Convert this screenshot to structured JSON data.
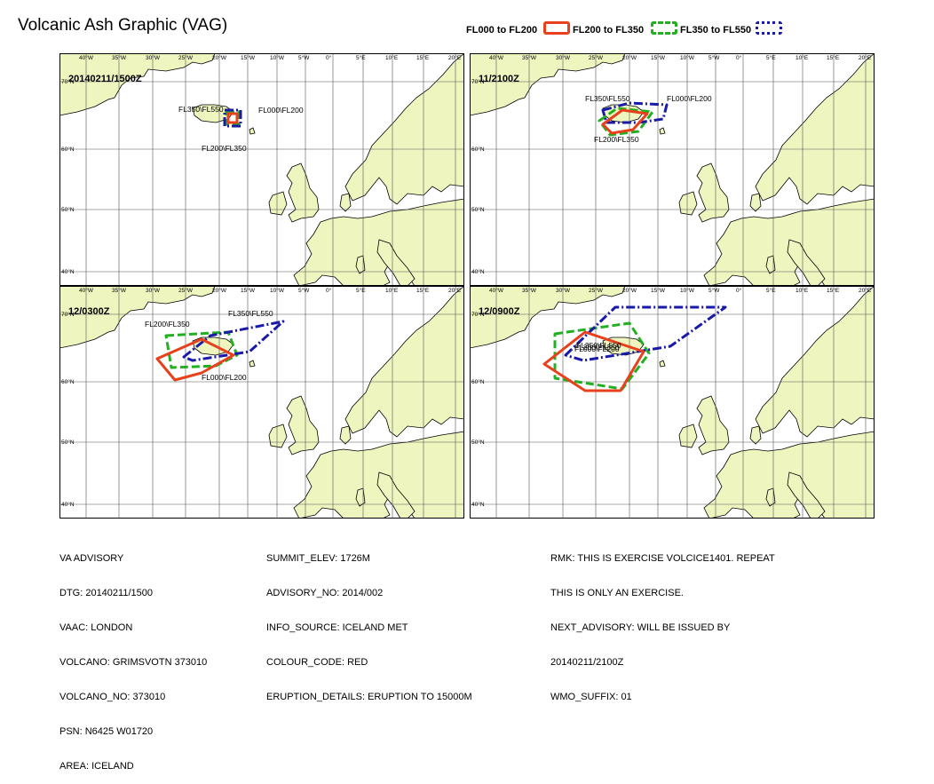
{
  "title": "Volcanic Ash Graphic (VAG)",
  "colors": {
    "fl000_fl200": "#e8401c",
    "fl200_fl350": "#22b022",
    "fl350_fl550": "#1a1aaa",
    "land": "#eef5bf",
    "sea": "#ffffff",
    "grid": "#555555"
  },
  "legend": [
    {
      "label": "FL000 to FL200",
      "color_key": "fl000_fl200",
      "style": "solid"
    },
    {
      "label": "FL200 to FL350",
      "color_key": "fl200_fl350",
      "style": "dashed"
    },
    {
      "label": "FL350 to FL550",
      "color_key": "fl350_fl550",
      "style": "dashdot"
    }
  ],
  "lon_ticks": [
    "40°W",
    "35°W",
    "30°W",
    "25°W",
    "20°W",
    "15°W",
    "10°W",
    "5°W",
    "0°",
    "5°E",
    "10°E",
    "15°E",
    "20°E"
  ],
  "lat_ticks": [
    "70°N",
    "60°N",
    "50°N",
    "40°N"
  ],
  "panels": [
    {
      "time": "20140211/1500Z",
      "labels": {
        "fl000": "FL000\\FL200",
        "fl200": "FL200\\FL350",
        "fl350": "FL350\\FL550"
      }
    },
    {
      "time": "11/2100Z",
      "labels": {
        "fl000": "FL000\\FL200",
        "fl200": "FL200\\FL350",
        "fl350": "FL350\\FL550"
      }
    },
    {
      "time": "12/0300Z",
      "labels": {
        "fl000": "FL000\\FL200",
        "fl200": "FL200\\FL350",
        "fl350": "FL350\\FL550"
      }
    },
    {
      "time": "12/0900Z",
      "labels": {
        "fl000": "FL000\\FL200",
        "fl200": "FL200\\FL350",
        "fl350": "FL350\\FL550"
      }
    }
  ],
  "info": {
    "col1": [
      "VA ADVISORY",
      "DTG: 20140211/1500",
      "VAAC: LONDON",
      "VOLCANO: GRIMSVOTN 373010",
      "VOLCANO_NO: 373010",
      "PSN: N6425 W01720",
      "AREA: ICELAND"
    ],
    "col2": [
      "SUMMIT_ELEV: 1726M",
      "ADVISORY_NO: 2014/002",
      "INFO_SOURCE: ICELAND MET",
      "COLOUR_CODE: RED",
      "ERUPTION_DETAILS: ERUPTION TO 15000M"
    ],
    "col3": [
      "RMK: THIS IS EXERCISE VOLCICE1401. REPEAT",
      "THIS IS ONLY AN EXERCISE.",
      "NEXT_ADVISORY: WILL BE ISSUED BY",
      "20140211/2100Z",
      "WMO_SUFFIX: 01"
    ]
  }
}
